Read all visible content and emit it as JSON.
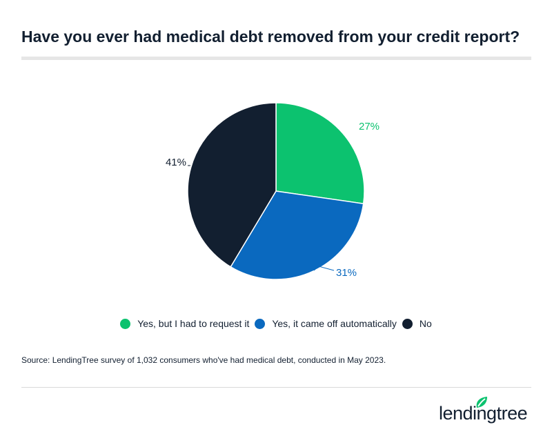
{
  "title": "Have you ever had medical debt removed from your credit report?",
  "chart_data": {
    "type": "pie",
    "title": "Have you ever had medical debt removed from your credit report?",
    "categories": [
      "Yes, but I had to request it",
      "Yes, it came off automatically",
      "No"
    ],
    "values": [
      27,
      31,
      41
    ],
    "labels": [
      "27%",
      "31%",
      "41%"
    ],
    "colors": [
      "#0cc26f",
      "#0a69bf",
      "#121f30"
    ],
    "start": "top, clockwise",
    "legend": "bottom"
  },
  "source": "Source: LendingTree survey of 1,032 consumers who've had medical debt, conducted in May 2023.",
  "logo": {
    "text": "lendingtree",
    "icon": "leaf-icon",
    "color": "#0cc26f"
  }
}
